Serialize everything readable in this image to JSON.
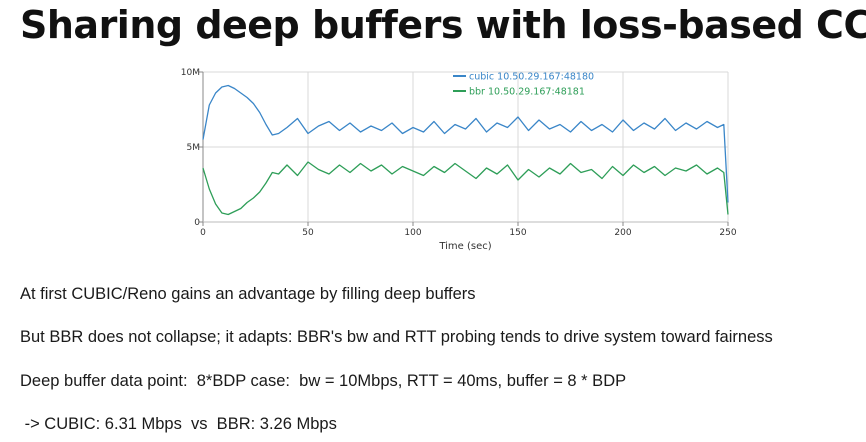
{
  "slide": {
    "title": "Sharing deep buffers with loss-based CC",
    "bullets": [
      "At first CUBIC/Reno gains an advantage by filling deep buffers",
      "But BBR does not collapse; it adapts: BBR's bw and RTT probing tends to drive system toward fairness",
      "Deep buffer data point:  8*BDP case:  bw = 10Mbps, RTT = 40ms, buffer = 8 * BDP",
      " -> CUBIC: 6.31 Mbps  vs  BBR: 3.26 Mbps"
    ]
  },
  "chart_data": {
    "type": "line",
    "xlabel": "Time (sec)",
    "ylabel": "",
    "xlim": [
      0,
      250
    ],
    "ylim": [
      0,
      10000000
    ],
    "x_ticks": [
      0,
      50,
      100,
      150,
      200,
      250
    ],
    "x_tick_labels": [
      "0",
      "50",
      "100",
      "150",
      "200",
      "250"
    ],
    "y_ticks": [
      0,
      5000000,
      10000000
    ],
    "y_tick_labels": [
      "0",
      "5M",
      "10M"
    ],
    "grid": true,
    "legend_position": "top-right",
    "series": [
      {
        "name": "cubic 10.50.29.167:48180",
        "color": "#3a86c8",
        "x": [
          0,
          3,
          6,
          9,
          12,
          15,
          18,
          21,
          24,
          27,
          30,
          33,
          36,
          40,
          45,
          50,
          55,
          60,
          65,
          70,
          75,
          80,
          85,
          90,
          95,
          100,
          105,
          110,
          115,
          120,
          125,
          130,
          135,
          140,
          145,
          150,
          155,
          160,
          165,
          170,
          175,
          180,
          185,
          190,
          195,
          200,
          205,
          210,
          215,
          220,
          225,
          230,
          235,
          240,
          245,
          248,
          250
        ],
        "y": [
          5500000,
          7800000,
          8600000,
          9000000,
          9100000,
          8900000,
          8600000,
          8300000,
          7900000,
          7300000,
          6500000,
          5800000,
          5900000,
          6300000,
          6900000,
          5900000,
          6400000,
          6700000,
          6100000,
          6600000,
          6000000,
          6400000,
          6100000,
          6600000,
          5900000,
          6300000,
          6000000,
          6700000,
          5900000,
          6500000,
          6200000,
          6900000,
          6000000,
          6600000,
          6300000,
          7000000,
          6100000,
          6800000,
          6200000,
          6500000,
          6000000,
          6700000,
          6100000,
          6500000,
          6000000,
          6800000,
          6100000,
          6600000,
          6200000,
          6900000,
          6100000,
          6600000,
          6200000,
          6700000,
          6300000,
          6500000,
          1300000
        ]
      },
      {
        "name": "bbr 10.50.29.167:48181",
        "color": "#2e9e58",
        "x": [
          0,
          3,
          6,
          9,
          12,
          15,
          18,
          21,
          24,
          27,
          30,
          33,
          36,
          40,
          45,
          50,
          55,
          60,
          65,
          70,
          75,
          80,
          85,
          90,
          95,
          100,
          105,
          110,
          115,
          120,
          125,
          130,
          135,
          140,
          145,
          150,
          155,
          160,
          165,
          170,
          175,
          180,
          185,
          190,
          195,
          200,
          205,
          210,
          215,
          220,
          225,
          230,
          235,
          240,
          245,
          248,
          250
        ],
        "y": [
          3600000,
          2200000,
          1200000,
          600000,
          500000,
          700000,
          900000,
          1300000,
          1600000,
          2000000,
          2600000,
          3300000,
          3200000,
          3800000,
          3100000,
          4000000,
          3500000,
          3200000,
          3800000,
          3300000,
          3900000,
          3400000,
          3800000,
          3200000,
          3700000,
          3400000,
          3100000,
          3700000,
          3300000,
          3900000,
          3400000,
          2900000,
          3600000,
          3200000,
          3800000,
          2800000,
          3500000,
          3000000,
          3600000,
          3200000,
          3900000,
          3300000,
          3500000,
          2900000,
          3700000,
          3100000,
          3800000,
          3300000,
          3700000,
          3100000,
          3600000,
          3400000,
          3800000,
          3200000,
          3600000,
          3300000,
          500000
        ]
      }
    ]
  }
}
